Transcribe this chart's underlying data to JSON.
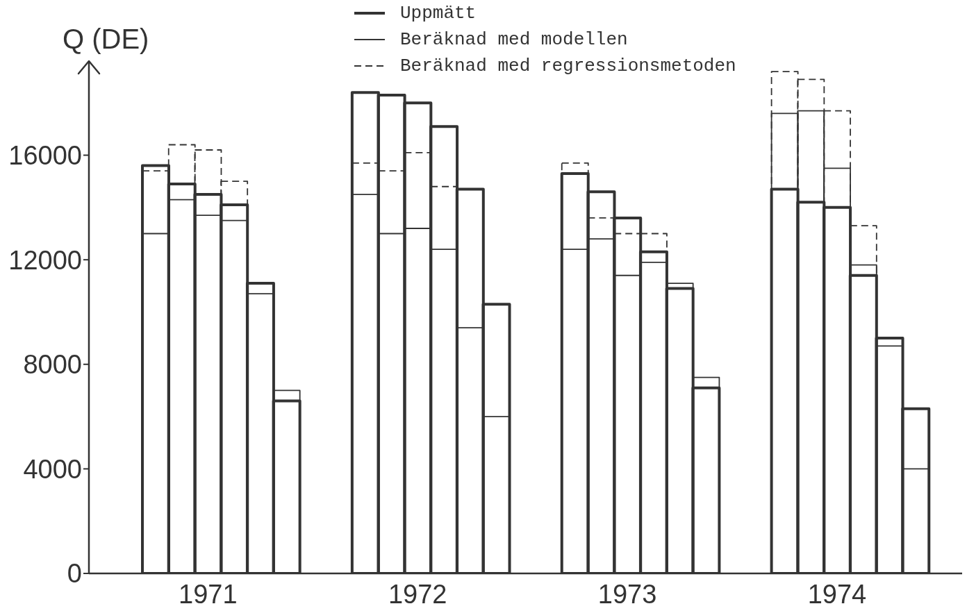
{
  "chart_data": {
    "type": "bar",
    "ylabel": "Q (DE)",
    "categories": [
      null,
      null,
      "1971",
      null,
      null,
      null,
      null,
      null,
      null,
      null,
      "1972",
      null,
      null,
      null,
      null,
      null,
      null,
      null,
      "1973",
      null,
      null,
      null,
      null,
      null,
      null,
      null,
      "1974",
      null,
      null,
      null
    ],
    "ylim": [
      0,
      19600
    ],
    "yticks": [
      0,
      4000,
      8000,
      12000,
      16000
    ],
    "legend": "top",
    "series": [
      {
        "name": "Uppmätt",
        "color": "#333333",
        "line_style": "solid",
        "values": [
          15600,
          14900,
          14500,
          14100,
          11100,
          6600,
          null,
          null,
          18400,
          18300,
          18000,
          17100,
          14700,
          10300,
          null,
          null,
          15300,
          14600,
          13600,
          12300,
          10900,
          7100,
          null,
          null,
          14700,
          14200,
          14000,
          11400,
          9000,
          6300
        ]
      },
      {
        "name": "Beräknad med modellen",
        "color": "#333333",
        "line_style": "solid",
        "values": [
          13000,
          14300,
          13700,
          13500,
          10700,
          7000,
          null,
          null,
          14500,
          13000,
          13200,
          12400,
          9400,
          6000,
          null,
          null,
          12400,
          12800,
          11400,
          11900,
          11100,
          7500,
          null,
          null,
          17600,
          17700,
          15500,
          11800,
          8700,
          4000
        ]
      },
      {
        "name": "Beräknad med regressionsmetoden",
        "color": "#333333",
        "line_style": "dashed",
        "values": [
          15400,
          16400,
          16200,
          15000,
          null,
          null,
          null,
          null,
          15700,
          15400,
          16100,
          14800,
          null,
          null,
          null,
          null,
          15700,
          13600,
          13000,
          13000,
          null,
          null,
          null,
          null,
          19200,
          18900,
          17700,
          13300,
          null,
          null
        ]
      }
    ]
  }
}
